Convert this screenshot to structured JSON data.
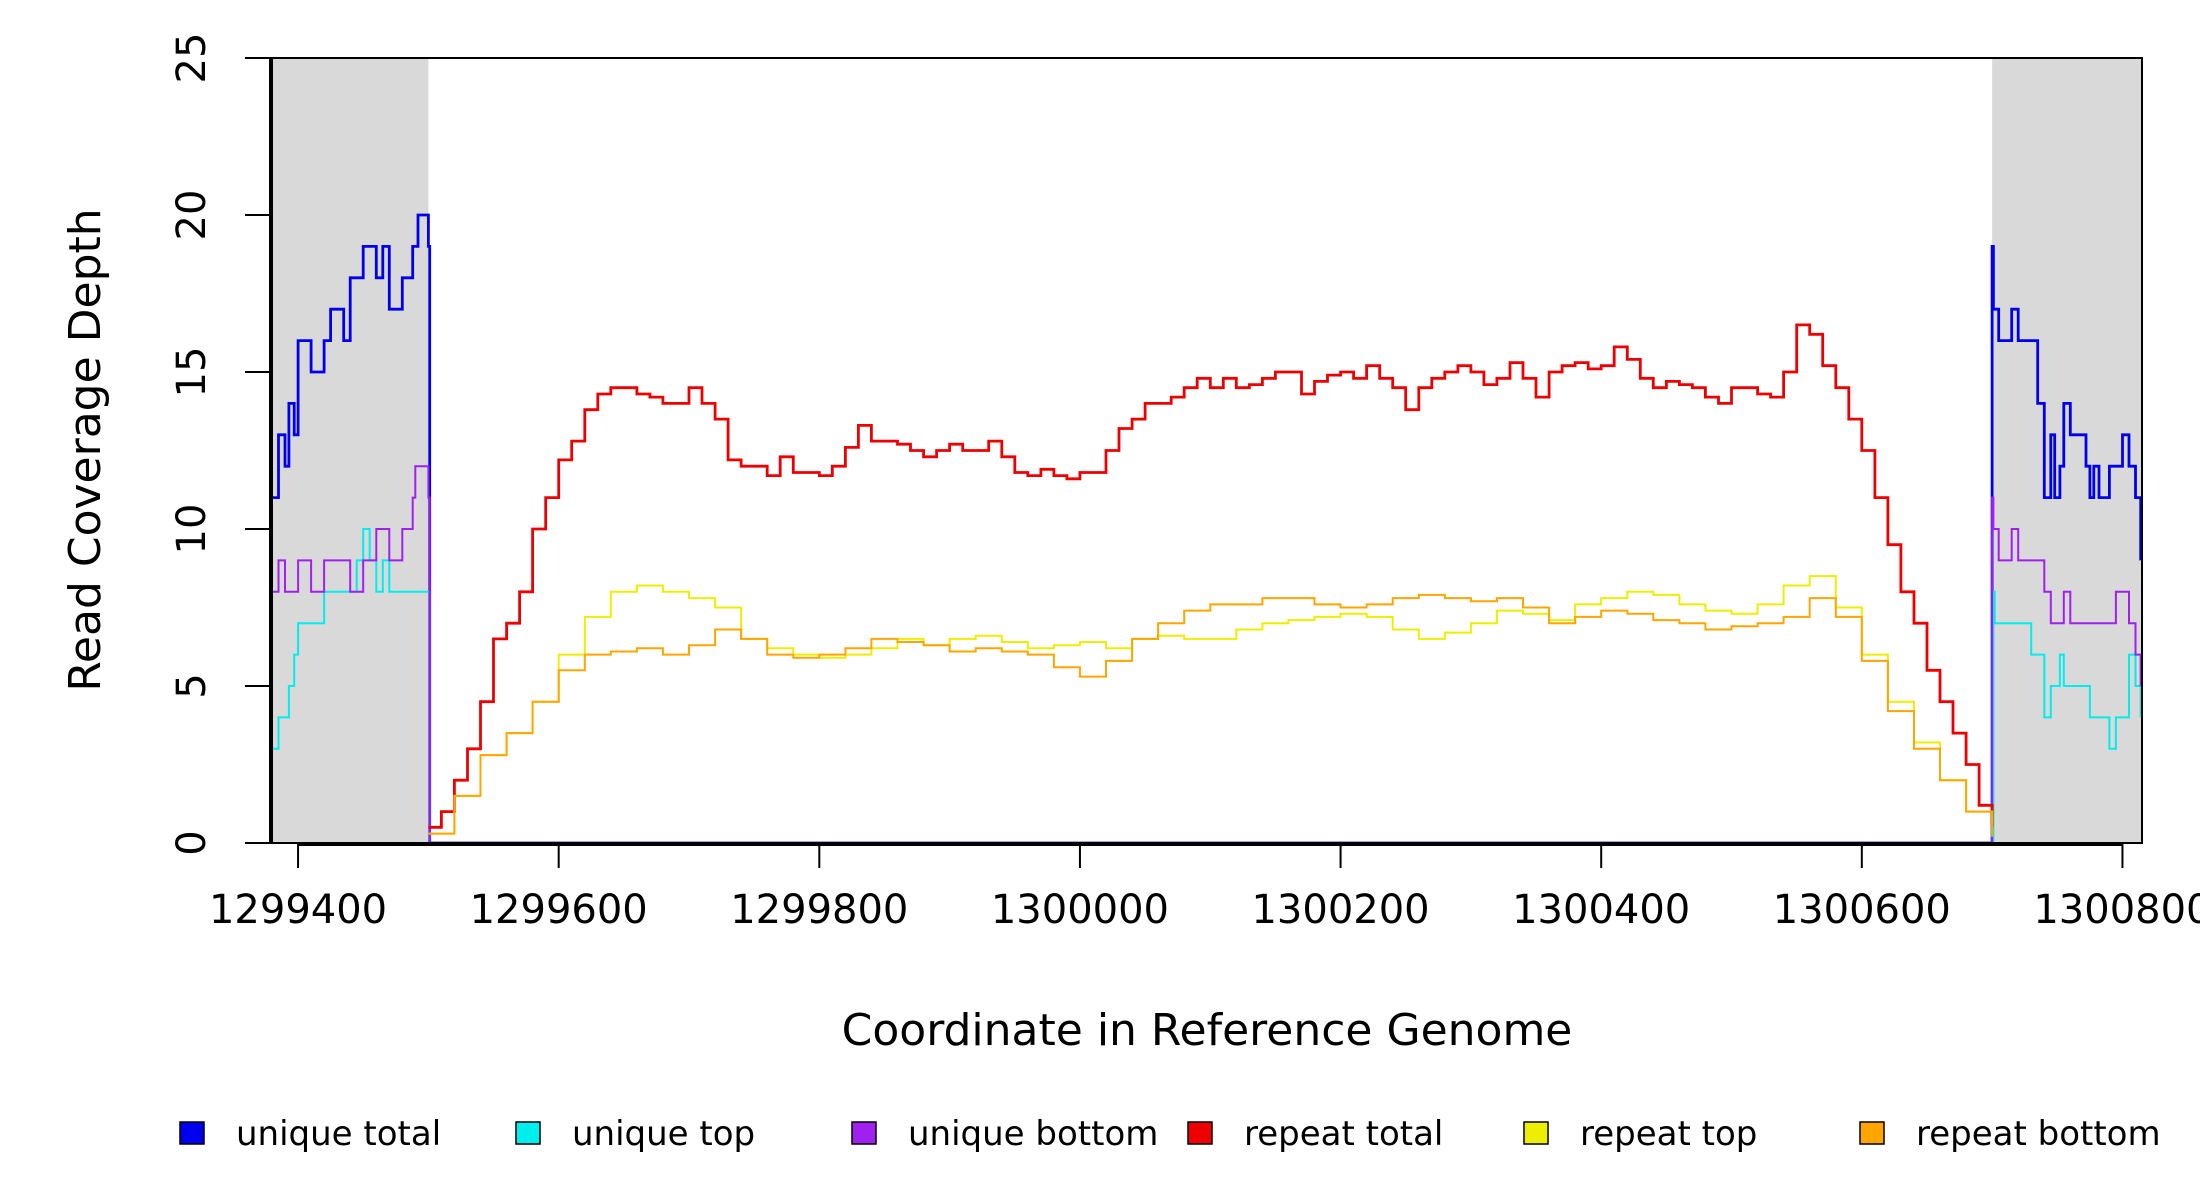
{
  "chart_data": {
    "type": "line",
    "xlabel": "Coordinate in Reference Genome",
    "ylabel": "Read Coverage Depth",
    "xlim": [
      1299380,
      1300815
    ],
    "ylim": [
      0,
      25
    ],
    "xticks": [
      1299400,
      1299600,
      1299800,
      1300000,
      1300200,
      1300400,
      1300600,
      1300800
    ],
    "xtick_labels": [
      "1299400",
      "1299600",
      "1299800",
      "1300000",
      "1300200",
      "1300400",
      "1300600",
      "1300800"
    ],
    "yticks": [
      0,
      5,
      10,
      15,
      20,
      25
    ],
    "ytick_labels": [
      "0",
      "5",
      "10",
      "15",
      "20",
      "25"
    ],
    "shaded_regions": [
      {
        "x0": 1299380,
        "x1": 1299500,
        "color": "#d9d9d9"
      },
      {
        "x0": 1300700,
        "x1": 1300815,
        "color": "#d9d9d9"
      }
    ],
    "legend_placement": "bottom",
    "series": [
      {
        "name": "unique total",
        "color": "#0000ee",
        "x": [
          1299380,
          1299385,
          1299390,
          1299393,
          1299397,
          1299400,
          1299410,
          1299420,
          1299425,
          1299435,
          1299440,
          1299450,
          1299460,
          1299465,
          1299470,
          1299480,
          1299488,
          1299492,
          1299500,
          1299501,
          1300699,
          1300700,
          1300701,
          1300705,
          1300715,
          1300720,
          1300735,
          1300740,
          1300745,
          1300748,
          1300752,
          1300755,
          1300760,
          1300772,
          1300775,
          1300778,
          1300782,
          1300790,
          1300800,
          1300805,
          1300810,
          1300814
        ],
        "y": [
          11,
          13,
          12,
          14,
          13,
          16,
          15,
          16,
          17,
          16,
          18,
          19,
          18,
          19,
          17,
          18,
          19,
          20,
          19,
          0,
          0,
          19,
          17,
          16,
          17,
          16,
          14,
          11,
          13,
          11,
          12,
          14,
          13,
          12,
          11,
          12,
          11,
          12,
          13,
          12,
          11,
          9
        ]
      },
      {
        "name": "unique top",
        "color": "#00eeee",
        "x": [
          1299380,
          1299385,
          1299393,
          1299397,
          1299400,
          1299420,
          1299440,
          1299445,
          1299450,
          1299455,
          1299460,
          1299465,
          1299470,
          1299500,
          1299501,
          1300699,
          1300700,
          1300701,
          1300702,
          1300730,
          1300740,
          1300745,
          1300752,
          1300755,
          1300765,
          1300775,
          1300785,
          1300790,
          1300795,
          1300805,
          1300810,
          1300814
        ],
        "y": [
          3,
          4,
          5,
          6,
          7,
          8,
          8,
          9,
          10,
          9,
          8,
          9,
          8,
          8,
          0,
          0,
          0,
          8,
          7,
          6,
          4,
          5,
          6,
          5,
          5,
          4,
          4,
          3,
          4,
          6,
          5,
          4
        ]
      },
      {
        "name": "unique bottom",
        "color": "#a020f0",
        "x": [
          1299380,
          1299385,
          1299390,
          1299400,
          1299410,
          1299420,
          1299440,
          1299450,
          1299460,
          1299470,
          1299480,
          1299488,
          1299490,
          1299500,
          1299501,
          1300699,
          1300700,
          1300701,
          1300705,
          1300715,
          1300720,
          1300740,
          1300745,
          1300755,
          1300760,
          1300795,
          1300805,
          1300810,
          1300814
        ],
        "y": [
          8,
          9,
          8,
          9,
          8,
          9,
          8,
          9,
          10,
          9,
          10,
          11,
          12,
          11,
          0,
          0,
          11,
          10,
          9,
          10,
          9,
          8,
          7,
          8,
          7,
          8,
          7,
          6,
          5
        ]
      },
      {
        "name": "repeat total",
        "color": "#ee0000",
        "x": [
          1299500,
          1299510,
          1299520,
          1299530,
          1299540,
          1299550,
          1299560,
          1299570,
          1299580,
          1299590,
          1299600,
          1299610,
          1299620,
          1299630,
          1299640,
          1299650,
          1299660,
          1299670,
          1299680,
          1299690,
          1299700,
          1299710,
          1299720,
          1299730,
          1299740,
          1299750,
          1299760,
          1299770,
          1299780,
          1299790,
          1299800,
          1299810,
          1299820,
          1299830,
          1299840,
          1299850,
          1299860,
          1299870,
          1299880,
          1299890,
          1299900,
          1299910,
          1299920,
          1299930,
          1299940,
          1299950,
          1299960,
          1299970,
          1299980,
          1299990,
          1300000,
          1300010,
          1300020,
          1300030,
          1300040,
          1300050,
          1300060,
          1300070,
          1300080,
          1300090,
          1300100,
          1300110,
          1300120,
          1300130,
          1300140,
          1300150,
          1300160,
          1300170,
          1300180,
          1300190,
          1300200,
          1300210,
          1300220,
          1300230,
          1300240,
          1300250,
          1300260,
          1300270,
          1300280,
          1300290,
          1300300,
          1300310,
          1300320,
          1300330,
          1300340,
          1300350,
          1300360,
          1300370,
          1300380,
          1300390,
          1300400,
          1300410,
          1300420,
          1300430,
          1300440,
          1300450,
          1300460,
          1300470,
          1300480,
          1300490,
          1300500,
          1300510,
          1300520,
          1300530,
          1300540,
          1300550,
          1300560,
          1300570,
          1300580,
          1300590,
          1300600,
          1300610,
          1300620,
          1300630,
          1300640,
          1300650,
          1300660,
          1300670,
          1300680,
          1300690,
          1300700
        ],
        "y": [
          0.5,
          1,
          2,
          3,
          4.5,
          6.5,
          7,
          8,
          10,
          11,
          12.2,
          12.8,
          13.8,
          14.3,
          14.5,
          14.5,
          14.3,
          14.2,
          14,
          14,
          14.5,
          14,
          13.5,
          12.2,
          12,
          12,
          11.7,
          12.3,
          11.8,
          11.8,
          11.7,
          12,
          12.6,
          13.3,
          12.8,
          12.8,
          12.7,
          12.5,
          12.3,
          12.5,
          12.7,
          12.5,
          12.5,
          12.8,
          12.3,
          11.8,
          11.7,
          11.9,
          11.7,
          11.6,
          11.8,
          11.8,
          12.5,
          13.2,
          13.5,
          14,
          14,
          14.2,
          14.5,
          14.8,
          14.5,
          14.8,
          14.5,
          14.6,
          14.8,
          15,
          15,
          14.3,
          14.7,
          14.9,
          15,
          14.8,
          15.2,
          14.8,
          14.5,
          13.8,
          14.5,
          14.8,
          15,
          15.2,
          15,
          14.6,
          14.8,
          15.3,
          14.8,
          14.2,
          15,
          15.2,
          15.3,
          15.1,
          15.2,
          15.8,
          15.4,
          14.8,
          14.5,
          14.7,
          14.6,
          14.5,
          14.2,
          14,
          14.5,
          14.5,
          14.3,
          14.2,
          15,
          16.5,
          16.2,
          15.2,
          14.5,
          13.5,
          12.5,
          11,
          9.5,
          8,
          7,
          5.5,
          4.5,
          3.5,
          2.5,
          1.2,
          0.5
        ],
        "extra": null
      },
      {
        "name": "repeat top",
        "color": "#eeee00",
        "x": [
          1299500,
          1299520,
          1299540,
          1299560,
          1299580,
          1299600,
          1299620,
          1299640,
          1299660,
          1299680,
          1299700,
          1299720,
          1299740,
          1299760,
          1299780,
          1299800,
          1299820,
          1299840,
          1299860,
          1299880,
          1299900,
          1299920,
          1299940,
          1299960,
          1299980,
          1300000,
          1300020,
          1300040,
          1300060,
          1300080,
          1300100,
          1300120,
          1300140,
          1300160,
          1300180,
          1300200,
          1300220,
          1300240,
          1300260,
          1300280,
          1300300,
          1300320,
          1300340,
          1300360,
          1300380,
          1300400,
          1300420,
          1300440,
          1300460,
          1300480,
          1300500,
          1300520,
          1300540,
          1300560,
          1300580,
          1300600,
          1300620,
          1300640,
          1300660,
          1300680,
          1300700
        ],
        "y": [
          0.3,
          1.5,
          2.8,
          3.5,
          4.5,
          6,
          7.2,
          8,
          8.2,
          8,
          7.8,
          7.5,
          6.5,
          6.2,
          6,
          5.9,
          6,
          6.2,
          6.5,
          6.3,
          6.5,
          6.6,
          6.4,
          6.2,
          6.3,
          6.4,
          6.2,
          6.5,
          6.6,
          6.5,
          6.5,
          6.8,
          7,
          7.1,
          7.2,
          7.3,
          7.2,
          6.8,
          6.5,
          6.7,
          7,
          7.4,
          7.3,
          7.1,
          7.6,
          7.8,
          8,
          7.9,
          7.6,
          7.4,
          7.3,
          7.6,
          8.2,
          8.5,
          7.5,
          6,
          4.5,
          3.2,
          2,
          1,
          0.3
        ]
      },
      {
        "name": "repeat bottom",
        "color": "#ffa500",
        "x": [
          1299500,
          1299520,
          1299540,
          1299560,
          1299580,
          1299600,
          1299620,
          1299640,
          1299660,
          1299680,
          1299700,
          1299720,
          1299740,
          1299760,
          1299780,
          1299800,
          1299820,
          1299840,
          1299860,
          1299880,
          1299900,
          1299920,
          1299940,
          1299960,
          1299980,
          1300000,
          1300020,
          1300040,
          1300060,
          1300080,
          1300100,
          1300120,
          1300140,
          1300160,
          1300180,
          1300200,
          1300220,
          1300240,
          1300260,
          1300280,
          1300300,
          1300320,
          1300340,
          1300360,
          1300380,
          1300400,
          1300420,
          1300440,
          1300460,
          1300480,
          1300500,
          1300520,
          1300540,
          1300560,
          1300580,
          1300600,
          1300620,
          1300640,
          1300660,
          1300680,
          1300700
        ],
        "y": [
          0.3,
          1.5,
          2.8,
          3.5,
          4.5,
          5.5,
          6,
          6.1,
          6.2,
          6,
          6.3,
          6.8,
          6.5,
          6,
          5.9,
          6,
          6.2,
          6.5,
          6.4,
          6.3,
          6.1,
          6.2,
          6.1,
          6,
          5.6,
          5.3,
          5.8,
          6.5,
          7,
          7.4,
          7.6,
          7.6,
          7.8,
          7.8,
          7.6,
          7.5,
          7.6,
          7.8,
          7.9,
          7.8,
          7.7,
          7.8,
          7.5,
          7,
          7.2,
          7.4,
          7.3,
          7.1,
          7,
          6.8,
          6.9,
          7,
          7.2,
          7.8,
          7.2,
          5.8,
          4.2,
          3,
          2,
          1,
          0.2
        ]
      }
    ]
  }
}
